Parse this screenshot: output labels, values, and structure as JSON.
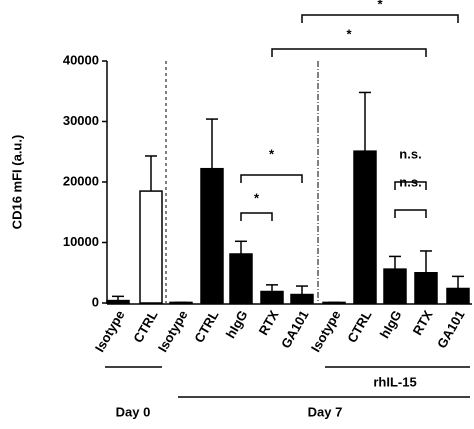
{
  "chart_data": {
    "type": "bar",
    "y_label": "CD16 mFI (a.u.)",
    "categories": [
      "Isotype",
      "CTRL",
      "Isotype",
      "CTRL",
      "hIgG",
      "RTX",
      "GA101",
      "Isotype",
      "CTRL",
      "hIgG",
      "RTX",
      "GA101"
    ],
    "values": [
      400,
      18500,
      100,
      22200,
      8100,
      1900,
      1400,
      100,
      25100,
      5600,
      5000,
      2400
    ],
    "errors": [
      700,
      5800,
      0,
      8200,
      2100,
      1100,
      1400,
      0,
      9700,
      2100,
      3600,
      2000
    ],
    "colors": [
      "#000000",
      "#ffffff",
      "#000000",
      "#000000",
      "#000000",
      "#000000",
      "#000000",
      "#000000",
      "#000000",
      "#000000",
      "#000000",
      "#000000"
    ],
    "ylim": [
      0,
      40000
    ],
    "yticks": [
      0,
      10000,
      20000,
      30000,
      40000
    ],
    "annotations": [
      "*",
      "*",
      "n.s.",
      "n.s.",
      "*",
      "*"
    ],
    "groups": [
      "Day 0",
      "Day 7",
      "rhIL-15"
    ]
  }
}
